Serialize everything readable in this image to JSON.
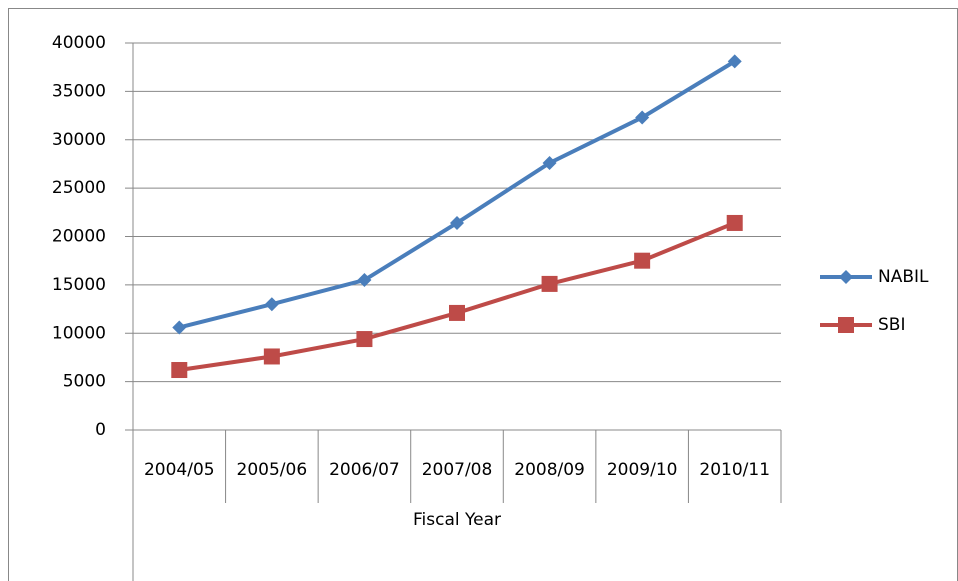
{
  "chart_data": {
    "type": "line",
    "x_label": "Fiscal Year",
    "categories": [
      "2004/05",
      "2005/06",
      "2006/07",
      "2007/08",
      "2008/09",
      "2009/10",
      "2010/11"
    ],
    "series": [
      {
        "name": "NABIL",
        "color": "#4a7ebb",
        "marker": "diamond",
        "values": [
          10600,
          13000,
          15500,
          21400,
          27600,
          32300,
          38100
        ]
      },
      {
        "name": "SBI",
        "color": "#be4b48",
        "marker": "square",
        "values": [
          6200,
          7600,
          9400,
          12100,
          15100,
          17500,
          21400
        ]
      }
    ],
    "ylim": [
      0,
      40000
    ],
    "yticks": [
      0,
      5000,
      10000,
      15000,
      20000,
      25000,
      30000,
      35000,
      40000
    ],
    "grid": true,
    "legend": "right"
  }
}
